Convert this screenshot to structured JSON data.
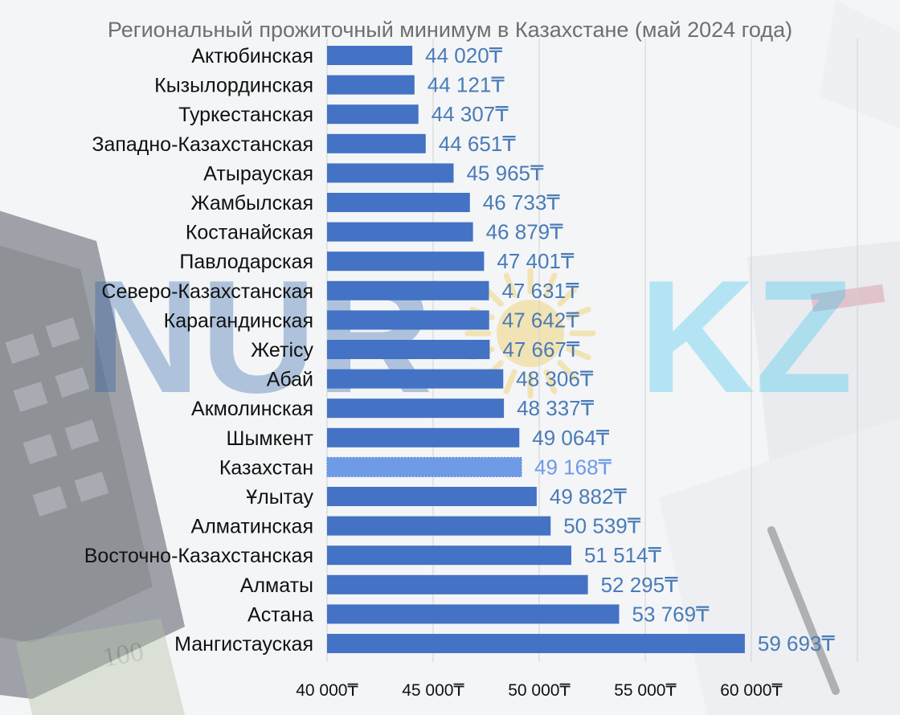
{
  "watermark": {
    "text_left": "NUR",
    "text_right": "KZ",
    "color_left": "#1f5aa6",
    "color_right": "#31c3ef",
    "sun_color": "#f2c02e"
  },
  "chart_data": {
    "type": "bar",
    "orientation": "horizontal",
    "title": "Региональный прожиточный минимум в Казахстане (май 2024 года)",
    "categories": [
      "Актюбинская",
      "Кызылординская",
      "Туркестанская",
      "Западно-Казахстанская",
      "Атырауская",
      "Жамбылская",
      "Костанайская",
      "Павлодарская",
      "Северо-Казахстанская",
      "Карагандинская",
      "Жетісу",
      "Абай",
      "Акмолинская",
      "Шымкент",
      "Казахстан",
      "Ұлытау",
      "Алматинская",
      "Восточно-Казахстанская",
      "Алматы",
      "Астана",
      "Мангистауская"
    ],
    "values": [
      44020,
      44121,
      44307,
      44651,
      45965,
      46733,
      46879,
      47401,
      47631,
      47642,
      47667,
      48306,
      48337,
      49064,
      49168,
      49882,
      50539,
      51514,
      52295,
      53769,
      59693
    ],
    "value_labels": [
      "44 020₸",
      "44 121₸",
      "44 307₸",
      "44 651₸",
      "45 965₸",
      "46 733₸",
      "46 879₸",
      "47 401₸",
      "47 631₸",
      "47 642₸",
      "47 667₸",
      "48 306₸",
      "48 337₸",
      "49 064₸",
      "49 168₸",
      "49 882₸",
      "50 539₸",
      "51 514₸",
      "52 295₸",
      "53 769₸",
      "59 693₸"
    ],
    "highlight_category": "Казахстан",
    "xlim": [
      40000,
      65000
    ],
    "xticks": [
      40000,
      45000,
      50000,
      55000,
      60000
    ],
    "xtick_labels": [
      "40 000₸",
      "45 000₸",
      "50 000₸",
      "55 000₸",
      "60 000₸"
    ],
    "grid": true,
    "bar_color": "#4472c4",
    "highlight_color": "#6f9be6",
    "label_color": "#4a7bb7",
    "highlight_label_color": "#6f9be6"
  }
}
